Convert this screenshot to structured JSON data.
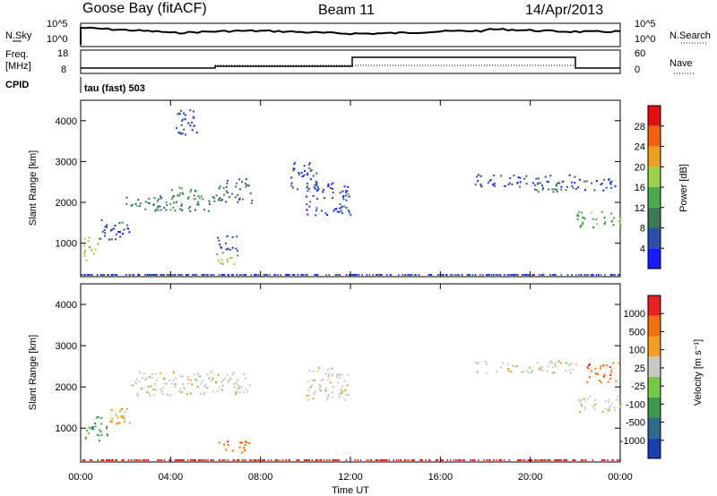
{
  "header": {
    "station": "Goose Bay (fitACF)",
    "beam": "Beam 11",
    "date": "14/Apr/2013"
  },
  "noise_panel": {
    "left_label": "N.Sky",
    "left_tick_top": "10^5",
    "left_tick_bottom": "10^0",
    "right_tick_top": "10^5",
    "right_tick_bottom": "10^0",
    "right_label": "N.Search"
  },
  "freq_panel": {
    "left_label_1": "Freq.",
    "left_label_2": "[MHz]",
    "left_tick_top": "18",
    "left_tick_bottom": "8",
    "right_tick_top": "60",
    "right_tick_bottom": "0",
    "right_label": "Nave"
  },
  "cpid_panel": {
    "left_label": "CPID",
    "text": "tau (fast) 503"
  },
  "chart_data": [
    {
      "type": "heatmap",
      "name": "power",
      "ylabel": "Slant Range [km]",
      "ylim": [
        180,
        4500
      ],
      "yticks": [
        "1000",
        "2000",
        "3000",
        "4000"
      ],
      "colorbar_label": "Power [dB]",
      "colorbar_ticks": [
        "4",
        "8",
        "12",
        "16",
        "20",
        "24",
        "28"
      ],
      "colorbar_colors": [
        "#1a1aff",
        "#2b4fa8",
        "#3a7b55",
        "#4ca84c",
        "#9ad24a",
        "#f0a020",
        "#f06010",
        "#e01010"
      ],
      "blobs": [
        {
          "t": [
            0.1,
            0.8
          ],
          "r": [
            600,
            1200
          ],
          "level": 18
        },
        {
          "t": [
            0.8,
            2.2
          ],
          "r": [
            1100,
            1600
          ],
          "level": 8
        },
        {
          "t": [
            2.0,
            6.0
          ],
          "r": [
            1800,
            2200
          ],
          "level": 12
        },
        {
          "t": [
            4.0,
            5.5
          ],
          "r": [
            2100,
            2400
          ],
          "level": 16
        },
        {
          "t": [
            6.0,
            7.6
          ],
          "r": [
            2000,
            2600
          ],
          "level": 10
        },
        {
          "t": [
            4.2,
            5.2
          ],
          "r": [
            3600,
            4300
          ],
          "level": 6
        },
        {
          "t": [
            6.0,
            7.0
          ],
          "r": [
            500,
            800
          ],
          "level": 20
        },
        {
          "t": [
            6.0,
            7.0
          ],
          "r": [
            800,
            1200
          ],
          "level": 8
        },
        {
          "t": [
            10.0,
            12.0
          ],
          "r": [
            1700,
            2500
          ],
          "level": 8
        },
        {
          "t": [
            9.2,
            10.5
          ],
          "r": [
            2300,
            3000
          ],
          "level": 6
        },
        {
          "t": [
            17.5,
            22.0
          ],
          "r": [
            2400,
            2700
          ],
          "level": 8
        },
        {
          "t": [
            20.0,
            22.0
          ],
          "r": [
            2250,
            2500
          ],
          "level": 12
        },
        {
          "t": [
            22.0,
            24.0
          ],
          "r": [
            1400,
            1800
          ],
          "level": 14
        },
        {
          "t": [
            22.0,
            24.0
          ],
          "r": [
            2300,
            2600
          ],
          "level": 8
        }
      ]
    },
    {
      "type": "heatmap",
      "name": "velocity",
      "ylabel": "Slant Range [km]",
      "ylim": [
        180,
        4500
      ],
      "yticks": [
        "1000",
        "2000",
        "3000",
        "4000"
      ],
      "colorbar_label": "Velocity [m s⁻¹]",
      "colorbar_ticks": [
        "1000",
        "500",
        "100",
        "25",
        "-25",
        "-100",
        "-500",
        "-1000"
      ],
      "colorbar_colors": [
        "#1c3fb0",
        "#2e6b8a",
        "#3d9a4a",
        "#78c848",
        "#c8c8c0",
        "#f0a020",
        "#f07010",
        "#e82020"
      ],
      "blobs": [
        {
          "t": [
            0.1,
            1.2
          ],
          "r": [
            700,
            1300
          ],
          "level": 2
        },
        {
          "t": [
            1.0,
            2.2
          ],
          "r": [
            1100,
            1500
          ],
          "level": 5
        },
        {
          "t": [
            2.2,
            7.5
          ],
          "r": [
            1800,
            2400
          ],
          "level": 4
        },
        {
          "t": [
            6.0,
            7.5
          ],
          "r": [
            400,
            700
          ],
          "level": 6
        },
        {
          "t": [
            10.0,
            12.0
          ],
          "r": [
            1700,
            2500
          ],
          "level": 4
        },
        {
          "t": [
            17.5,
            22.0
          ],
          "r": [
            2350,
            2650
          ],
          "level": 4
        },
        {
          "t": [
            22.0,
            24.0
          ],
          "r": [
            1400,
            1800
          ],
          "level": 4
        },
        {
          "t": [
            22.5,
            24.0
          ],
          "r": [
            2100,
            2600
          ],
          "level": 6
        }
      ]
    }
  ],
  "time_axis": {
    "xlabel": "Time UT",
    "ticks": [
      "00:00",
      "04:00",
      "08:00",
      "12:00",
      "16:00",
      "20:00",
      "00:00"
    ],
    "xlim": [
      0,
      24
    ]
  }
}
